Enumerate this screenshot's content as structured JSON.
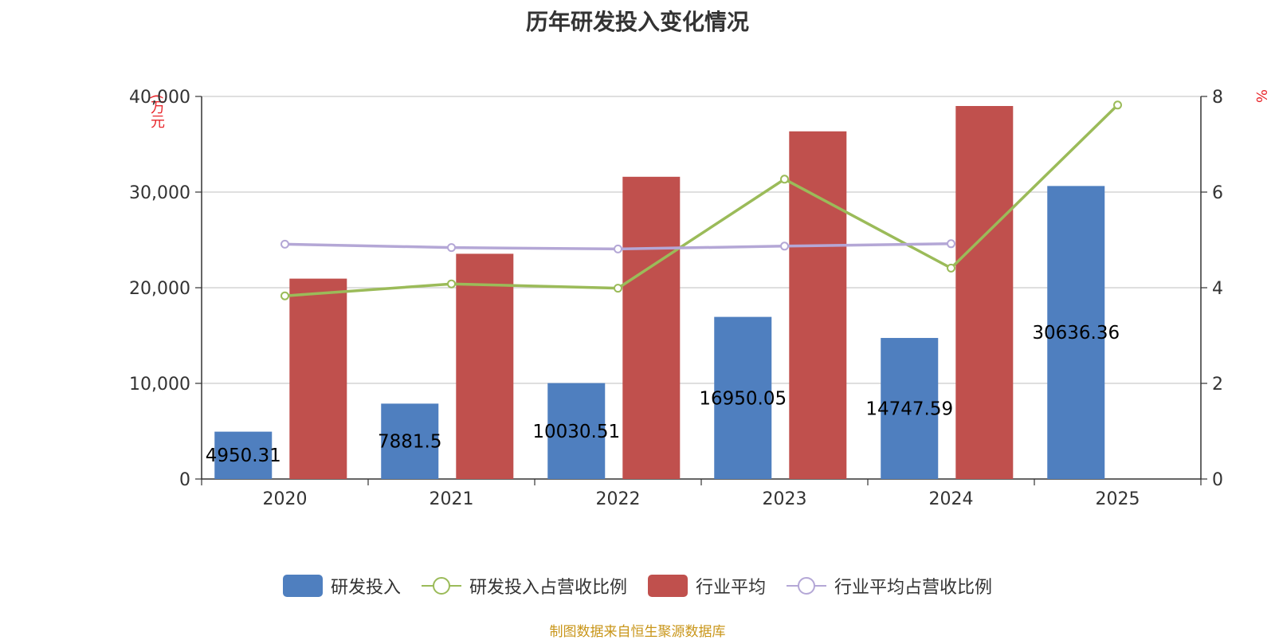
{
  "chart_data": {
    "type": "bar",
    "title": "历年研发投入变化情况",
    "y_left_unit": "(万元",
    "y_right_unit": "%",
    "categories": [
      "2020",
      "2021",
      "2022",
      "2023",
      "2024",
      "2025"
    ],
    "y_left_ticks": [
      "0",
      "10,000",
      "20,000",
      "30,000",
      "40,000"
    ],
    "y_right_ticks": [
      "0",
      "2",
      "4",
      "6",
      "8"
    ],
    "ylim_left": [
      0,
      40000
    ],
    "ylim_right": [
      0,
      8
    ],
    "grid": true,
    "legend_position": "bottom",
    "series": [
      {
        "name": "研发投入",
        "kind": "bar",
        "axis": "left",
        "color": "#4f7fbf",
        "values": [
          4950.31,
          7881.5,
          10030.51,
          16950.05,
          14747.59,
          30636.36
        ],
        "labels": [
          "4950.31",
          "7881.5",
          "10030.51",
          "16950.05",
          "14747.59",
          "30636.36"
        ]
      },
      {
        "name": "研发投入占营收比例",
        "kind": "line",
        "axis": "right",
        "color": "#9bbb59",
        "values": [
          3.83,
          4.08,
          3.99,
          6.27,
          4.41,
          7.82
        ]
      },
      {
        "name": "行业平均",
        "kind": "bar",
        "axis": "left",
        "color": "#c0504d",
        "values": [
          20950,
          23550,
          31600,
          36350,
          39000,
          null
        ]
      },
      {
        "name": "行业平均占营收比例",
        "kind": "line",
        "axis": "right",
        "color": "#b4a7d6",
        "values": [
          4.91,
          4.84,
          4.81,
          4.87,
          4.92,
          null
        ]
      }
    ]
  },
  "source": "制图数据来自恒生聚源数据库"
}
